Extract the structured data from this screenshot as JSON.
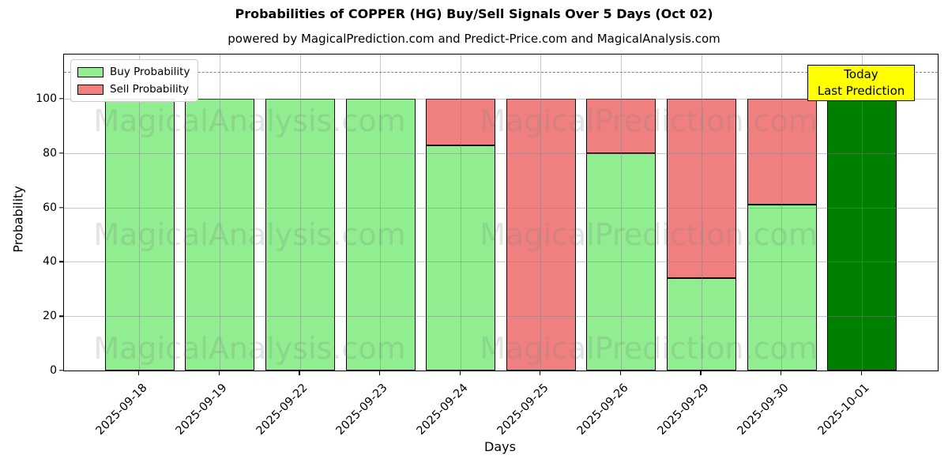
{
  "title": "Probabilities of COPPER (HG) Buy/Sell Signals Over 5 Days (Oct 02)",
  "subtitle": "powered by MagicalPrediction.com and Predict-Price.com and MagicalAnalysis.com",
  "legend": {
    "items": [
      {
        "label": "Buy Probability",
        "color": "#90EE90"
      },
      {
        "label": "Sell Probability",
        "color": "#F08080"
      }
    ]
  },
  "annotation": {
    "line1": "Today",
    "line2": "Last Prediction",
    "bg_color": "#FFFF00"
  },
  "watermarks": {
    "left_text": "MagicalAnalysis.com",
    "right_text": "MagicalPrediction.com"
  },
  "colors": {
    "buy": "#90EE90",
    "sell": "#F08080",
    "today_bar": "#008000",
    "bar_edge": "#000000",
    "grid": "rgba(128,128,128,0.45)",
    "dashed_line": "#808080",
    "watermark": "rgba(128,128,128,0.22)",
    "annotation_bg": "#FFFF00"
  },
  "chart_data": {
    "type": "bar",
    "stacked": true,
    "title": "Probabilities of COPPER (HG) Buy/Sell Signals Over 5 Days (Oct 02)",
    "subtitle": "powered by MagicalPrediction.com and Predict-Price.com and MagicalAnalysis.com",
    "categories": [
      "2025-09-18",
      "2025-09-19",
      "2025-09-22",
      "2025-09-23",
      "2025-09-24",
      "2025-09-25",
      "2025-09-26",
      "2025-09-29",
      "2025-09-30",
      "2025-10-01"
    ],
    "series": [
      {
        "name": "Buy Probability",
        "color": "#90EE90",
        "values": [
          100,
          100,
          100,
          100,
          83,
          0,
          80,
          34,
          61,
          100
        ]
      },
      {
        "name": "Sell Probability",
        "color": "#F08080",
        "values": [
          0,
          0,
          0,
          0,
          17,
          100,
          20,
          66,
          39,
          0
        ]
      }
    ],
    "today_bar": {
      "index": 9,
      "category": "2025-10-01",
      "color": "#008000",
      "label": "Today Last Prediction"
    },
    "xlabel": "Days",
    "ylabel": "Probability",
    "yticks": [
      0,
      20,
      40,
      60,
      80,
      100
    ],
    "ylim": [
      0,
      116
    ],
    "dashed_line_y": 110,
    "grid": true,
    "legend_position": "upper left"
  }
}
